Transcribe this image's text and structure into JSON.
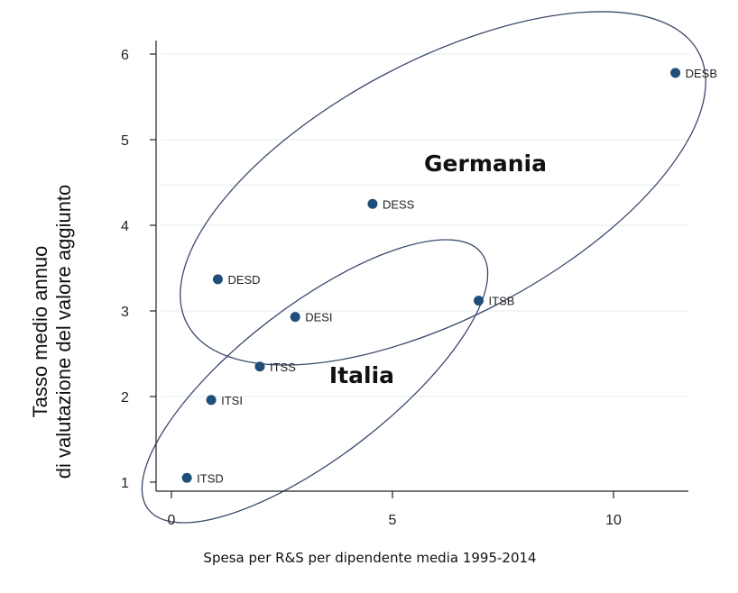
{
  "chart_data": {
    "type": "scatter",
    "title": "",
    "xlabel": "Spesa per R&S per dipendente media 1995-2014",
    "ylabel_lines": [
      "Tasso medio annuo",
      "di valutazione del valore aggiunto"
    ],
    "xlim": [
      0,
      11.5
    ],
    "ylim": [
      1,
      6
    ],
    "x_ticks": [
      0,
      5,
      10
    ],
    "y_ticks": [
      1,
      2,
      3,
      4,
      5,
      6
    ],
    "grid": "horizontal",
    "point_color": "#1f4e79",
    "points": [
      {
        "label": "DESB",
        "x": 11.4,
        "y": 5.78
      },
      {
        "label": "DESS",
        "x": 4.55,
        "y": 4.25
      },
      {
        "label": "DESD",
        "x": 1.05,
        "y": 3.37
      },
      {
        "label": "DESI",
        "x": 2.8,
        "y": 2.93
      },
      {
        "label": "ITSB",
        "x": 6.95,
        "y": 3.12
      },
      {
        "label": "ITSS",
        "x": 2.0,
        "y": 2.35
      },
      {
        "label": "ITSI",
        "x": 0.9,
        "y": 1.96
      },
      {
        "label": "ITSD",
        "x": 0.35,
        "y": 1.05
      }
    ],
    "groups": [
      {
        "name": "Germania",
        "members": [
          "DESB",
          "DESS",
          "DESD",
          "DESI"
        ]
      },
      {
        "name": "Italia",
        "members": [
          "ITSB",
          "ITSS",
          "ITSI",
          "ITSD"
        ]
      }
    ]
  }
}
